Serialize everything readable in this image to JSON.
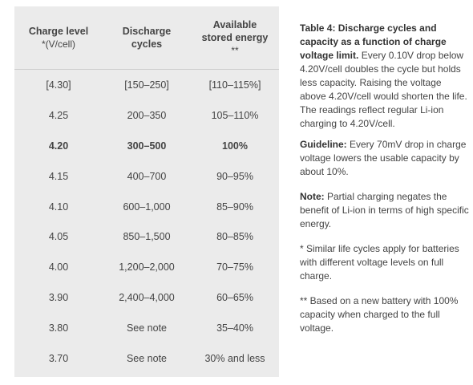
{
  "table": {
    "headers": {
      "col1_title": "Charge level",
      "col1_sub": "*(V/cell)",
      "col2_line1": "Discharge",
      "col2_line2": "cycles",
      "col3_line1": "Available",
      "col3_line2": "stored energy",
      "col3_sub": "**"
    },
    "rows": [
      {
        "level": "[4.30]",
        "cycles": "[150–250]",
        "energy": "[110–115%]",
        "bold": false
      },
      {
        "level": "4.25",
        "cycles": "200–350",
        "energy": "105–110%",
        "bold": false
      },
      {
        "level": "4.20",
        "cycles": "300–500",
        "energy": "100%",
        "bold": true
      },
      {
        "level": "4.15",
        "cycles": "400–700",
        "energy": "90–95%",
        "bold": false
      },
      {
        "level": "4.10",
        "cycles": "600–1,000",
        "energy": "85–90%",
        "bold": false
      },
      {
        "level": "4.05",
        "cycles": "850–1,500",
        "energy": "80–85%",
        "bold": false
      },
      {
        "level": "4.00",
        "cycles": "1,200–2,000",
        "energy": "70–75%",
        "bold": false
      },
      {
        "level": "3.90",
        "cycles": "2,400–4,000",
        "energy": "60–65%",
        "bold": false
      },
      {
        "level": "3.80",
        "cycles": "See note",
        "energy": "35–40%",
        "bold": false
      },
      {
        "level": "3.70",
        "cycles": "See note",
        "energy": "30% and less",
        "bold": false
      }
    ]
  },
  "caption": {
    "title": "Table 4: Discharge cycles and capacity as a function of charge voltage limit.",
    "body": " Every 0.10V drop below 4.20V/cell doubles the cycle but holds less capacity. Raising the voltage above 4.20V/cell would shorten the life. The readings reflect regular Li-ion charging to 4.20V/cell.",
    "guideline_label": "Guideline:",
    "guideline_text": " Every 70mV drop in charge voltage lowers the usable capacity by about 10%.",
    "note_label": "Note:",
    "note_text": " Partial charging negates the benefit of Li-ion in terms of high specific energy.",
    "footnote1": "*  Similar life cycles apply for batteries with different voltage levels on full charge.",
    "footnote2": "** Based on a new battery with 100% capacity when charged to the full voltage."
  }
}
